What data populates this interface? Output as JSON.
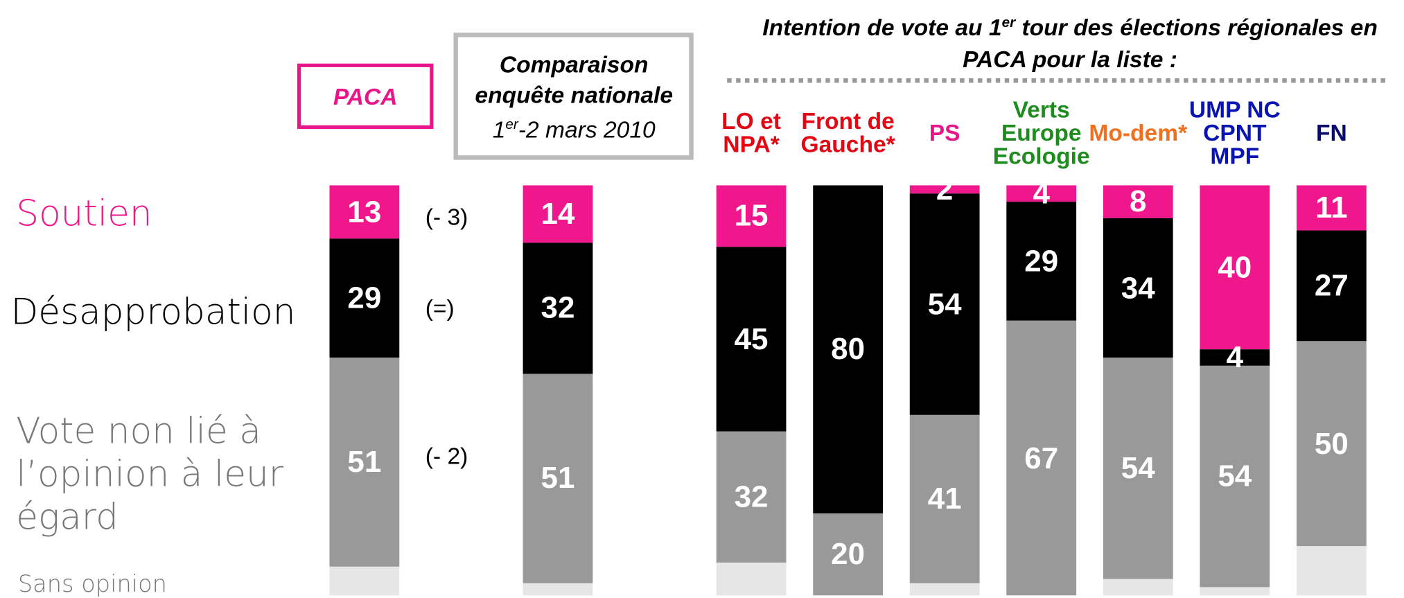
{
  "chart_data": {
    "type": "stacked-bar",
    "title_parts": [
      "Intention de vote au 1",
      "er",
      " tour des élections régionales en PACA pour la liste :"
    ],
    "categories": [
      "PACA",
      "Comparaison enquête nationale",
      "LO et NPA*",
      "Front de Gauche*",
      "PS",
      "Verts Europe Ecologie",
      "Mo-dem*",
      "UMP NC CPNT MPF",
      "FN"
    ],
    "category_colors": [
      "#e8168a",
      "#000000",
      "#e30613",
      "#e30613",
      "#e8168a",
      "#1e8c1e",
      "#f07020",
      "#0a14b4",
      "#0a0a6e"
    ],
    "comparison_date_parts": [
      "1",
      "er",
      "-2 mars 2010"
    ],
    "changes": [
      "(- 3)",
      "(=)",
      "(- 2)"
    ],
    "ylim": [
      0,
      100
    ],
    "series": [
      {
        "name": "Soutien",
        "color": "#f0168c",
        "values": [
          13,
          14,
          15,
          null,
          2,
          4,
          8,
          40,
          11
        ]
      },
      {
        "name": "Désapprobation",
        "color": "#000000",
        "values": [
          29,
          32,
          45,
          80,
          54,
          29,
          34,
          4,
          27
        ]
      },
      {
        "name": "Vote non lié à l’opinion à leur égard",
        "color": "#999999",
        "values": [
          51,
          51,
          32,
          20,
          41,
          67,
          54,
          54,
          50
        ]
      },
      {
        "name": "Sans opinion",
        "color": "#e6e6e6",
        "values": [
          7,
          3,
          8,
          0,
          3,
          0,
          4,
          2,
          12
        ]
      }
    ],
    "legend_colors": [
      "#f0168c",
      "#000000",
      "#777777",
      "#777777"
    ]
  }
}
